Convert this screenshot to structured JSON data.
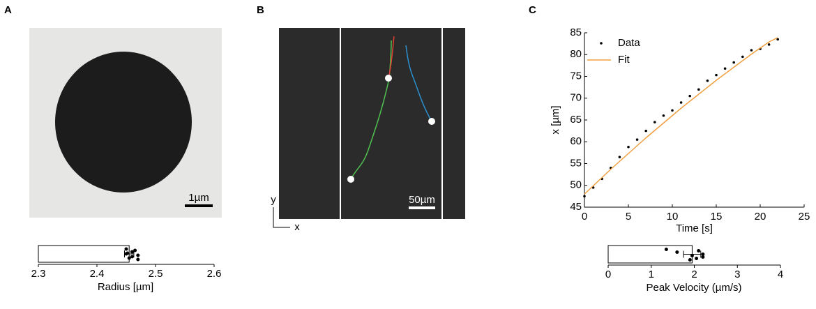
{
  "panels": {
    "a": {
      "label": "A",
      "scale_bar": "1µm"
    },
    "b": {
      "label": "B",
      "scale_bar": "50µm",
      "axis_y": "y",
      "axis_x": "x"
    },
    "c": {
      "label": "C"
    }
  },
  "chart_data": [
    {
      "type": "bar",
      "orientation": "horizontal",
      "categories": [
        null
      ],
      "values": [
        2.455
      ],
      "errors": [
        0.008
      ],
      "points": [
        2.45,
        2.46,
        2.47,
        2.455,
        2.465,
        2.45,
        2.46,
        2.47,
        2.452
      ],
      "color": "#ffffff",
      "xlabel": "Radius [µm]",
      "xlim": [
        2.3,
        2.6
      ],
      "xticks": [
        2.3,
        2.4,
        2.5,
        2.6
      ]
    },
    {
      "type": "line",
      "xlabel": "Time [s]",
      "ylabel": "x [µm]",
      "xlim": [
        0,
        25
      ],
      "xticks": [
        0,
        5,
        10,
        15,
        20,
        25
      ],
      "ylim": [
        45,
        85
      ],
      "yticks": [
        45,
        50,
        55,
        60,
        65,
        70,
        75,
        80,
        85
      ],
      "legend": "upper-left",
      "x": [
        0,
        1,
        2,
        3,
        4,
        5,
        6,
        7,
        8,
        9,
        10,
        11,
        12,
        13,
        14,
        15,
        16,
        17,
        18,
        19,
        20,
        21,
        22
      ],
      "series": [
        {
          "name": "Data",
          "color": "#000000",
          "marker": "dot",
          "values": [
            47.5,
            49.5,
            51.5,
            54,
            56.5,
            58.8,
            60.5,
            62.5,
            64.5,
            66,
            67.2,
            69,
            70.5,
            72,
            74,
            75.3,
            76.8,
            78.2,
            79.5,
            81,
            81.3,
            82.3,
            83.5
          ]
        },
        {
          "name": "Fit",
          "color": "#f0a040",
          "marker": "line",
          "values": [
            48,
            49.9,
            51.8,
            53.7,
            55.5,
            57.3,
            59.1,
            60.9,
            62.6,
            64.3,
            66,
            67.7,
            69.3,
            70.9,
            72.5,
            74.1,
            75.6,
            77.1,
            78.6,
            80.1,
            81.5,
            82.9,
            83.9
          ]
        }
      ]
    },
    {
      "type": "bar",
      "orientation": "horizontal",
      "categories": [
        null
      ],
      "values": [
        1.95
      ],
      "errors": [
        0.2
      ],
      "points": [
        1.35,
        1.6,
        1.95,
        2.05,
        2.1,
        2.2,
        2.2,
        1.9
      ],
      "color": "#ffffff",
      "xlabel": "Peak Velocity (µm/s)",
      "xlim": [
        0,
        4
      ],
      "xticks": [
        0,
        1,
        2,
        3,
        4
      ]
    }
  ]
}
